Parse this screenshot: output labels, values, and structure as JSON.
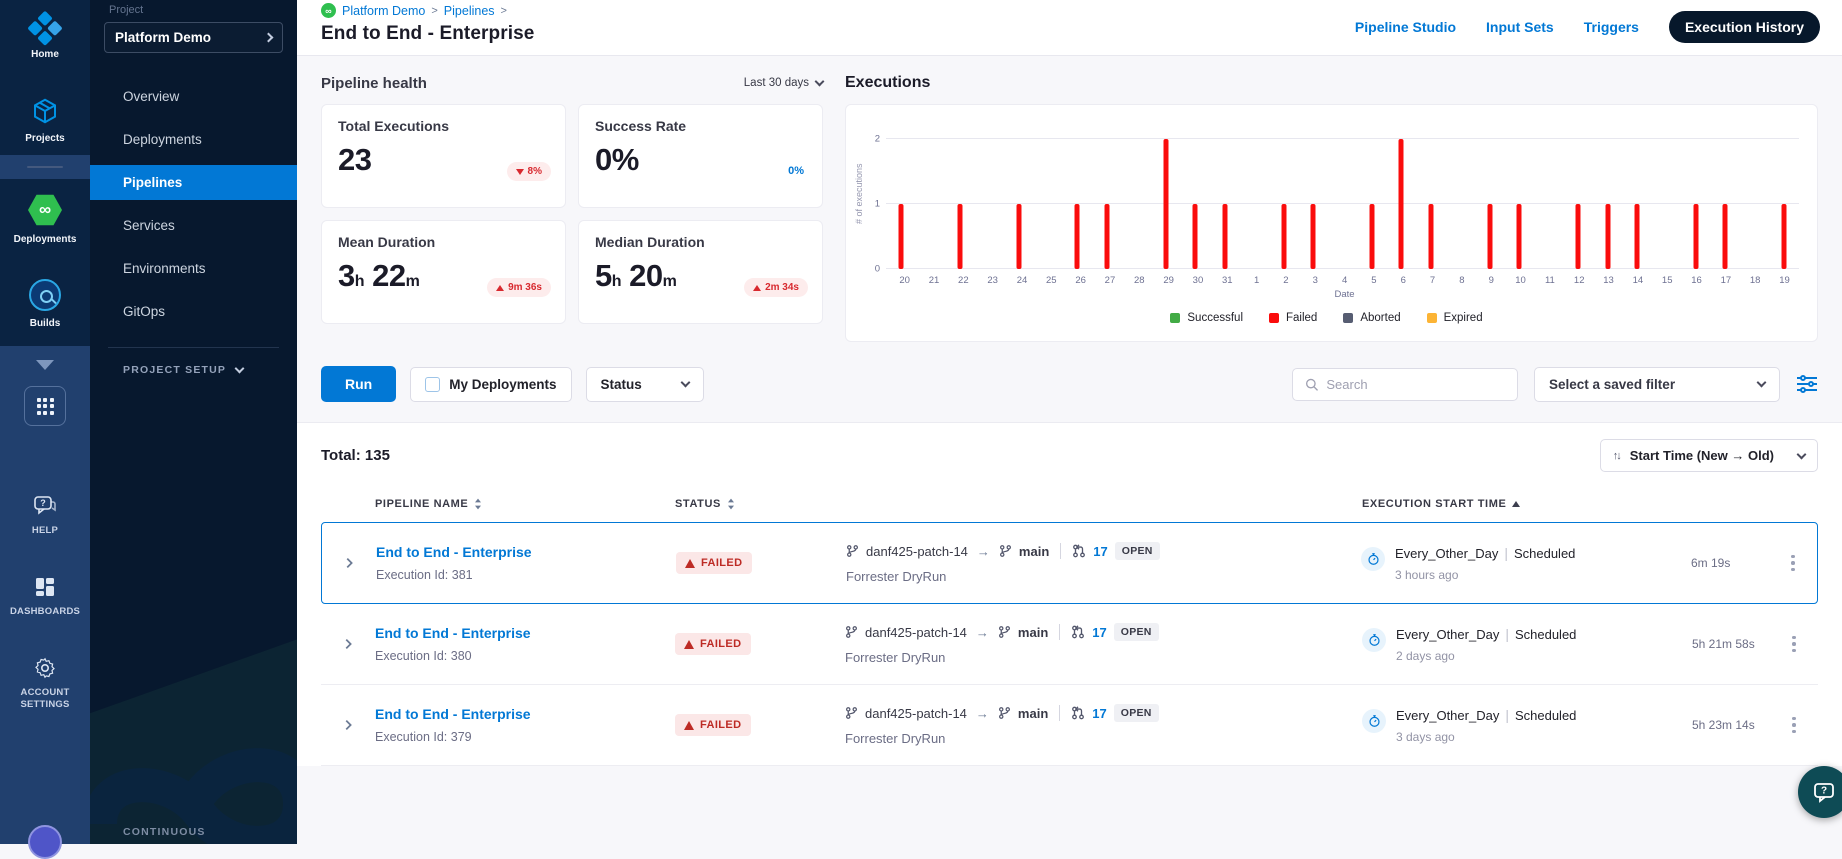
{
  "brand": {
    "accent": "#0278d5",
    "navy": "#07182b",
    "red": "#fa0c0c",
    "green": "#2fbf4f"
  },
  "rail": {
    "items_top": [
      {
        "label": "Home",
        "icon": "harness-logo-icon"
      },
      {
        "label": "Projects",
        "icon": "cube-icon"
      }
    ],
    "items_modules": [
      {
        "label": "Deployments",
        "icon": "cd-hexagon-icon"
      },
      {
        "label": "Builds",
        "icon": "ci-circle-icon"
      }
    ],
    "items_bottom": [
      {
        "label": "HELP",
        "icon": "chat-question-icon"
      },
      {
        "label": "DASHBOARDS",
        "icon": "dashboard-grid-icon"
      },
      {
        "label": "ACCOUNT SETTINGS",
        "icon": "gear-icon"
      }
    ]
  },
  "sidebar": {
    "project_label": "Project",
    "project_name": "Platform Demo",
    "items": [
      "Overview",
      "Deployments",
      "Pipelines",
      "Services",
      "Environments",
      "GitOps"
    ],
    "active_item": "Pipelines",
    "setup_label": "PROJECT SETUP",
    "footer_label": "CONTINUOUS"
  },
  "header": {
    "breadcrumb": [
      "Platform Demo",
      "Pipelines"
    ],
    "title": "End to End - Enterprise",
    "nav_links": [
      "Pipeline Studio",
      "Input Sets",
      "Triggers"
    ],
    "active_pill": "Execution History"
  },
  "health": {
    "title": "Pipeline health",
    "range": "Last 30 days",
    "cards": [
      {
        "label": "Total Executions",
        "value": "23",
        "delta": "8%",
        "delta_dir": "down",
        "delta_style": "pill"
      },
      {
        "label": "Success Rate",
        "value": "0%",
        "delta": "0%",
        "delta_dir": "none",
        "delta_style": "plain"
      },
      {
        "label": "Mean Duration",
        "value": "3h 22m",
        "delta": "9m 36s",
        "delta_dir": "up",
        "delta_style": "pill"
      },
      {
        "label": "Median Duration",
        "value": "5h 20m",
        "delta": "2m 34s",
        "delta_dir": "up",
        "delta_style": "pill"
      }
    ]
  },
  "chart_data": {
    "type": "bar",
    "title": "Executions",
    "xlabel": "Date",
    "ylabel": "# of executions",
    "ylim": [
      0,
      2
    ],
    "yticks": [
      0,
      1,
      2
    ],
    "grid": true,
    "legend_position": "bottom",
    "categories": [
      "20",
      "21",
      "22",
      "23",
      "24",
      "25",
      "26",
      "27",
      "28",
      "29",
      "30",
      "31",
      "1",
      "2",
      "3",
      "4",
      "5",
      "6",
      "7",
      "8",
      "9",
      "10",
      "11",
      "12",
      "13",
      "14",
      "15",
      "16",
      "17",
      "18",
      "19"
    ],
    "series": [
      {
        "name": "Failed",
        "color": "#fa0c0c",
        "values": [
          1,
          0,
          1,
          0,
          1,
          0,
          1,
          1,
          0,
          2,
          1,
          1,
          0,
          1,
          1,
          0,
          1,
          2,
          1,
          0,
          1,
          1,
          0,
          1,
          1,
          1,
          0,
          1,
          1,
          0,
          1
        ]
      }
    ],
    "legend": [
      {
        "label": "Successful",
        "color": "#42ab45"
      },
      {
        "label": "Failed",
        "color": "#fa0c0c"
      },
      {
        "label": "Aborted",
        "color": "#575d72"
      },
      {
        "label": "Expired",
        "color": "#fcb435"
      }
    ]
  },
  "filters": {
    "run_label": "Run",
    "my_deployments_label": "My Deployments",
    "status_label": "Status",
    "search_placeholder": "Search",
    "saved_filter_label": "Select a saved filter"
  },
  "table": {
    "total_label": "Total: 135",
    "sort_label": "Start Time (New → Old)",
    "columns": [
      "PIPELINE NAME",
      "STATUS",
      "EXECUTION START TIME"
    ],
    "rows": [
      {
        "name": "End to End - Enterprise",
        "execution_id": "Execution Id: 381",
        "status": "FAILED",
        "source_branch": "danf425-patch-14",
        "target_branch": "main",
        "pr_number": "17",
        "pr_state": "OPEN",
        "tag": "Forrester DryRun",
        "trigger": "Every_Other_Day",
        "trigger_type": "Scheduled",
        "started": "3 hours ago",
        "duration": "6m 19s",
        "selected": true
      },
      {
        "name": "End to End - Enterprise",
        "execution_id": "Execution Id: 380",
        "status": "FAILED",
        "source_branch": "danf425-patch-14",
        "target_branch": "main",
        "pr_number": "17",
        "pr_state": "OPEN",
        "tag": "Forrester DryRun",
        "trigger": "Every_Other_Day",
        "trigger_type": "Scheduled",
        "started": "2 days ago",
        "duration": "5h 21m 58s",
        "selected": false
      },
      {
        "name": "End to End - Enterprise",
        "execution_id": "Execution Id: 379",
        "status": "FAILED",
        "source_branch": "danf425-patch-14",
        "target_branch": "main",
        "pr_number": "17",
        "pr_state": "OPEN",
        "tag": "Forrester DryRun",
        "trigger": "Every_Other_Day",
        "trigger_type": "Scheduled",
        "started": "3 days ago",
        "duration": "5h 23m 14s",
        "selected": false
      }
    ]
  }
}
